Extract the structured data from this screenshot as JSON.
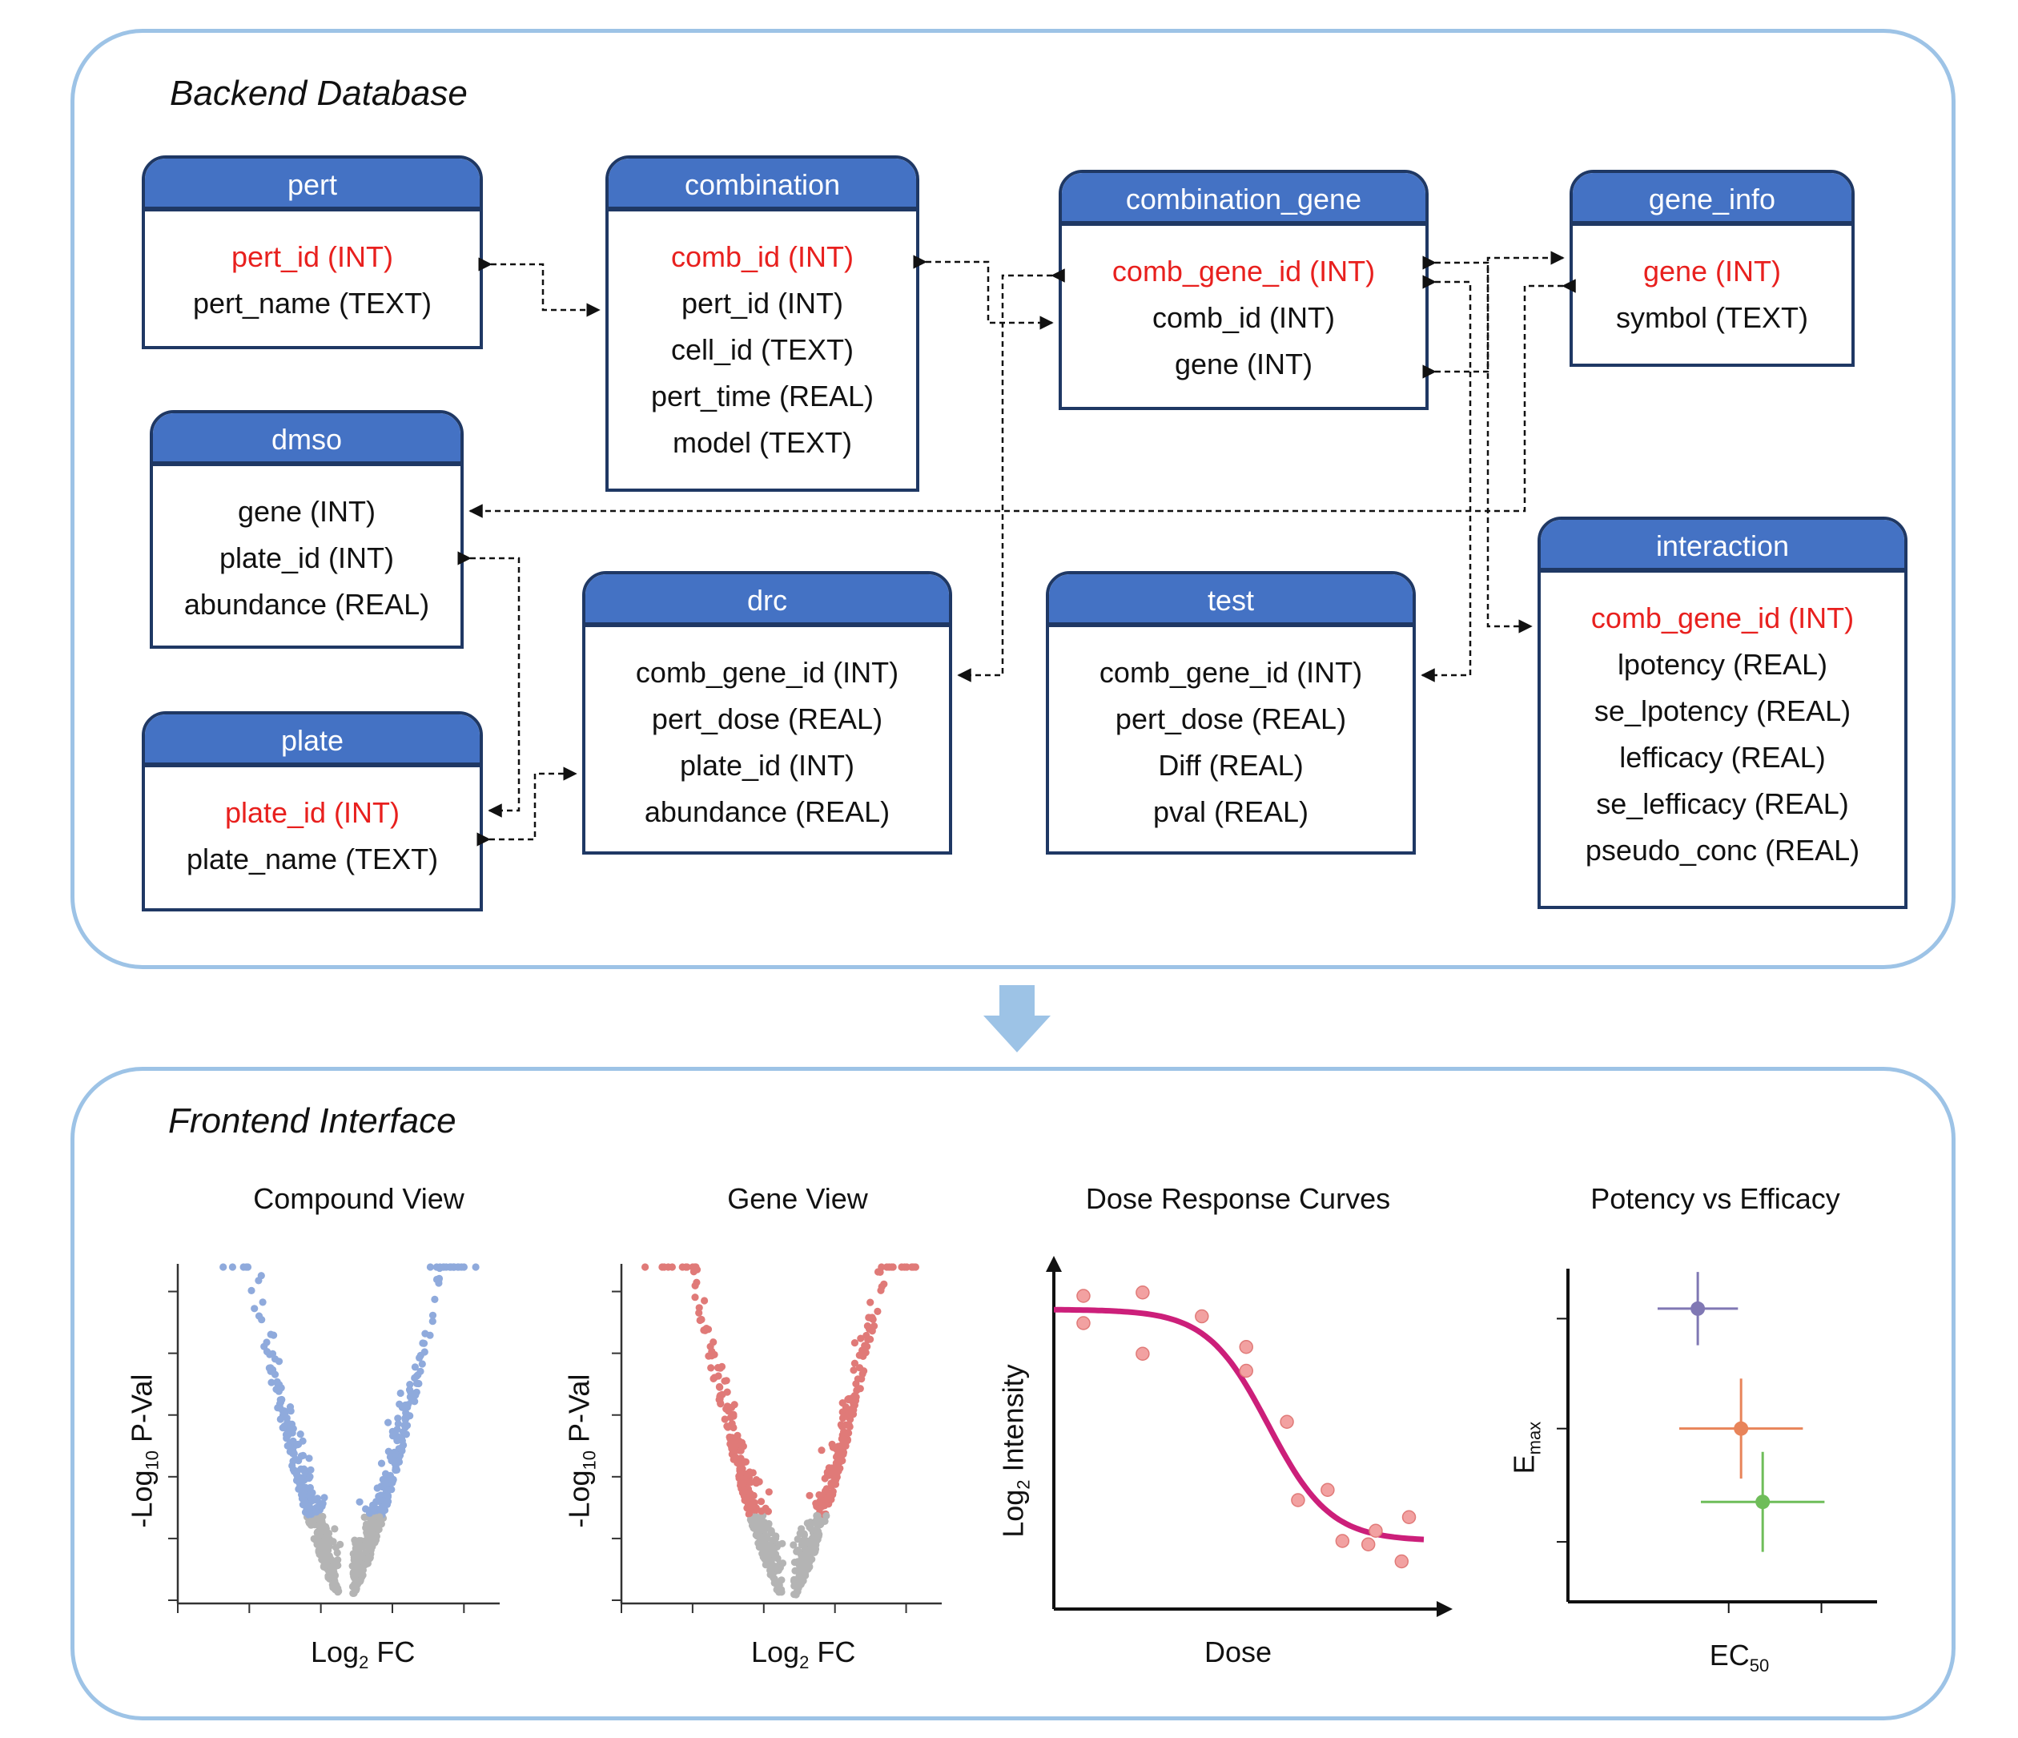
{
  "backend": {
    "title": "Backend Database",
    "tables": [
      {
        "id": "pert",
        "name": "pert",
        "fields": [
          {
            "text": "pert_id (INT)",
            "key": true
          },
          {
            "text": "pert_name (TEXT)",
            "key": false
          }
        ]
      },
      {
        "id": "combination",
        "name": "combination",
        "fields": [
          {
            "text": "comb_id (INT)",
            "key": true
          },
          {
            "text": "pert_id (INT)",
            "key": false
          },
          {
            "text": "cell_id (TEXT)",
            "key": false
          },
          {
            "text": "pert_time (REAL)",
            "key": false
          },
          {
            "text": "model (TEXT)",
            "key": false
          }
        ]
      },
      {
        "id": "combination_gene",
        "name": "combination_gene",
        "fields": [
          {
            "text": "comb_gene_id (INT)",
            "key": true
          },
          {
            "text": "comb_id (INT)",
            "key": false
          },
          {
            "text": "gene (INT)",
            "key": false
          }
        ]
      },
      {
        "id": "gene_info",
        "name": "gene_info",
        "fields": [
          {
            "text": "gene (INT)",
            "key": true
          },
          {
            "text": "symbol (TEXT)",
            "key": false
          }
        ]
      },
      {
        "id": "dmso",
        "name": "dmso",
        "fields": [
          {
            "text": "gene (INT)",
            "key": false
          },
          {
            "text": "plate_id (INT)",
            "key": false
          },
          {
            "text": "abundance (REAL)",
            "key": false
          }
        ]
      },
      {
        "id": "drc",
        "name": "drc",
        "fields": [
          {
            "text": "comb_gene_id (INT)",
            "key": false
          },
          {
            "text": "pert_dose (REAL)",
            "key": false
          },
          {
            "text": "plate_id (INT)",
            "key": false
          },
          {
            "text": "abundance (REAL)",
            "key": false
          }
        ]
      },
      {
        "id": "test",
        "name": "test",
        "fields": [
          {
            "text": "comb_gene_id (INT)",
            "key": false
          },
          {
            "text": "pert_dose (REAL)",
            "key": false
          },
          {
            "text": "Diff (REAL)",
            "key": false
          },
          {
            "text": "pval (REAL)",
            "key": false
          }
        ]
      },
      {
        "id": "interaction",
        "name": "interaction",
        "fields": [
          {
            "text": "comb_gene_id (INT)",
            "key": true
          },
          {
            "text": "lpotency (REAL)",
            "key": false
          },
          {
            "text": "se_lpotency (REAL)",
            "key": false
          },
          {
            "text": "lefficacy (REAL)",
            "key": false
          },
          {
            "text": "se_lefficacy (REAL)",
            "key": false
          },
          {
            "text": "pseudo_conc (REAL)",
            "key": false
          }
        ]
      },
      {
        "id": "plate",
        "name": "plate",
        "fields": [
          {
            "text": "plate_id (INT)",
            "key": true
          },
          {
            "text": "plate_name (TEXT)",
            "key": false
          }
        ]
      }
    ],
    "relations": [
      {
        "from": "pert.pert_id",
        "to": "combination.pert_id"
      },
      {
        "from": "combination.comb_id",
        "to": "combination_gene.comb_id"
      },
      {
        "from": "combination_gene.comb_gene_id",
        "to": "drc.comb_gene_id"
      },
      {
        "from": "combination_gene.gene",
        "to": "gene_info.gene"
      },
      {
        "from": "gene_info.gene",
        "to": "dmso.gene"
      },
      {
        "from": "combination_gene.comb_gene_id",
        "to": "test.comb_gene_id"
      },
      {
        "from": "combination_gene.comb_gene_id",
        "to": "interaction.comb_gene_id"
      },
      {
        "from": "dmso.plate_id",
        "to": "plate.plate_id"
      },
      {
        "from": "plate.plate_id",
        "to": "drc.plate_id"
      }
    ]
  },
  "frontend": {
    "title": "Frontend Interface",
    "panels": [
      {
        "title": "Compound View",
        "xlabel": "Log",
        "xlabel_sub": "2",
        "xlabel_tail": " FC",
        "ylabel": "-Log",
        "ylabel_sub": "10",
        "ylabel_tail": " P-Val",
        "color": "#8faadc"
      },
      {
        "title": "Gene View",
        "xlabel": "Log",
        "xlabel_sub": "2",
        "xlabel_tail": " FC",
        "ylabel": "-Log",
        "ylabel_sub": "10",
        "ylabel_tail": " P-Val",
        "color": "#e07a78"
      },
      {
        "title": "Dose Response  Curves",
        "xlabel": "Dose",
        "xlabel_sub": "",
        "xlabel_tail": "",
        "ylabel": "Log",
        "ylabel_sub": "2",
        "ylabel_tail": " Intensity",
        "color": "#cc1f7a"
      },
      {
        "title": "Potency vs Efficacy",
        "xlabel": "EC",
        "xlabel_sub": "50",
        "xlabel_tail": "",
        "ylabel": "E",
        "ylabel_sub": "max",
        "ylabel_tail": "",
        "color": "#555555"
      }
    ]
  },
  "colors": {
    "panel_border": "#9dc3e6",
    "table_header": "#4472c4",
    "table_border": "#1f3864",
    "key_field": "#e8201e",
    "arrow": "#9dc3e6",
    "nonsig": "#b4b4b4"
  },
  "chart_data": [
    {
      "type": "scatter",
      "title": "Compound View",
      "xlabel": "Log2 FC",
      "ylabel": "-Log10 P-Val",
      "series": [
        {
          "name": "",
          "kind": "volcano",
          "color": "#8faadc"
        }
      ]
    },
    {
      "type": "scatter",
      "title": "Gene View",
      "xlabel": "Log2 FC",
      "ylabel": "-Log10 P-Val",
      "series": [
        {
          "name": "",
          "kind": "volcano",
          "color": "#e07a78"
        }
      ]
    },
    {
      "type": "line",
      "title": "Dose Response  Curves",
      "xlabel": "Dose",
      "ylabel": "Log2 Intensity",
      "points": [
        [
          0.08,
          0.92
        ],
        [
          0.08,
          0.84
        ],
        [
          0.24,
          0.93
        ],
        [
          0.24,
          0.75
        ],
        [
          0.4,
          0.86
        ],
        [
          0.52,
          0.7
        ],
        [
          0.52,
          0.77
        ],
        [
          0.63,
          0.55
        ],
        [
          0.66,
          0.32
        ],
        [
          0.74,
          0.35
        ],
        [
          0.78,
          0.2
        ],
        [
          0.85,
          0.19
        ],
        [
          0.87,
          0.23
        ],
        [
          0.94,
          0.14
        ],
        [
          0.96,
          0.27
        ]
      ],
      "curve": {
        "top": 0.88,
        "bottom": 0.2,
        "ec50": 0.58,
        "hill": 12
      }
    },
    {
      "type": "scatter",
      "title": "Potency vs Efficacy",
      "xlabel": "EC50",
      "ylabel": "Emax",
      "series": [
        {
          "name": "",
          "color": "#8078b4",
          "x": 0.42,
          "y": 0.88,
          "xerr": 0.13,
          "yerr": 0.11
        },
        {
          "name": "",
          "color": "#e8845a",
          "x": 0.56,
          "y": 0.52,
          "xerr": 0.2,
          "yerr": 0.15
        },
        {
          "name": "",
          "color": "#6fbd5a",
          "x": 0.63,
          "y": 0.3,
          "xerr": 0.2,
          "yerr": 0.15
        }
      ]
    }
  ]
}
